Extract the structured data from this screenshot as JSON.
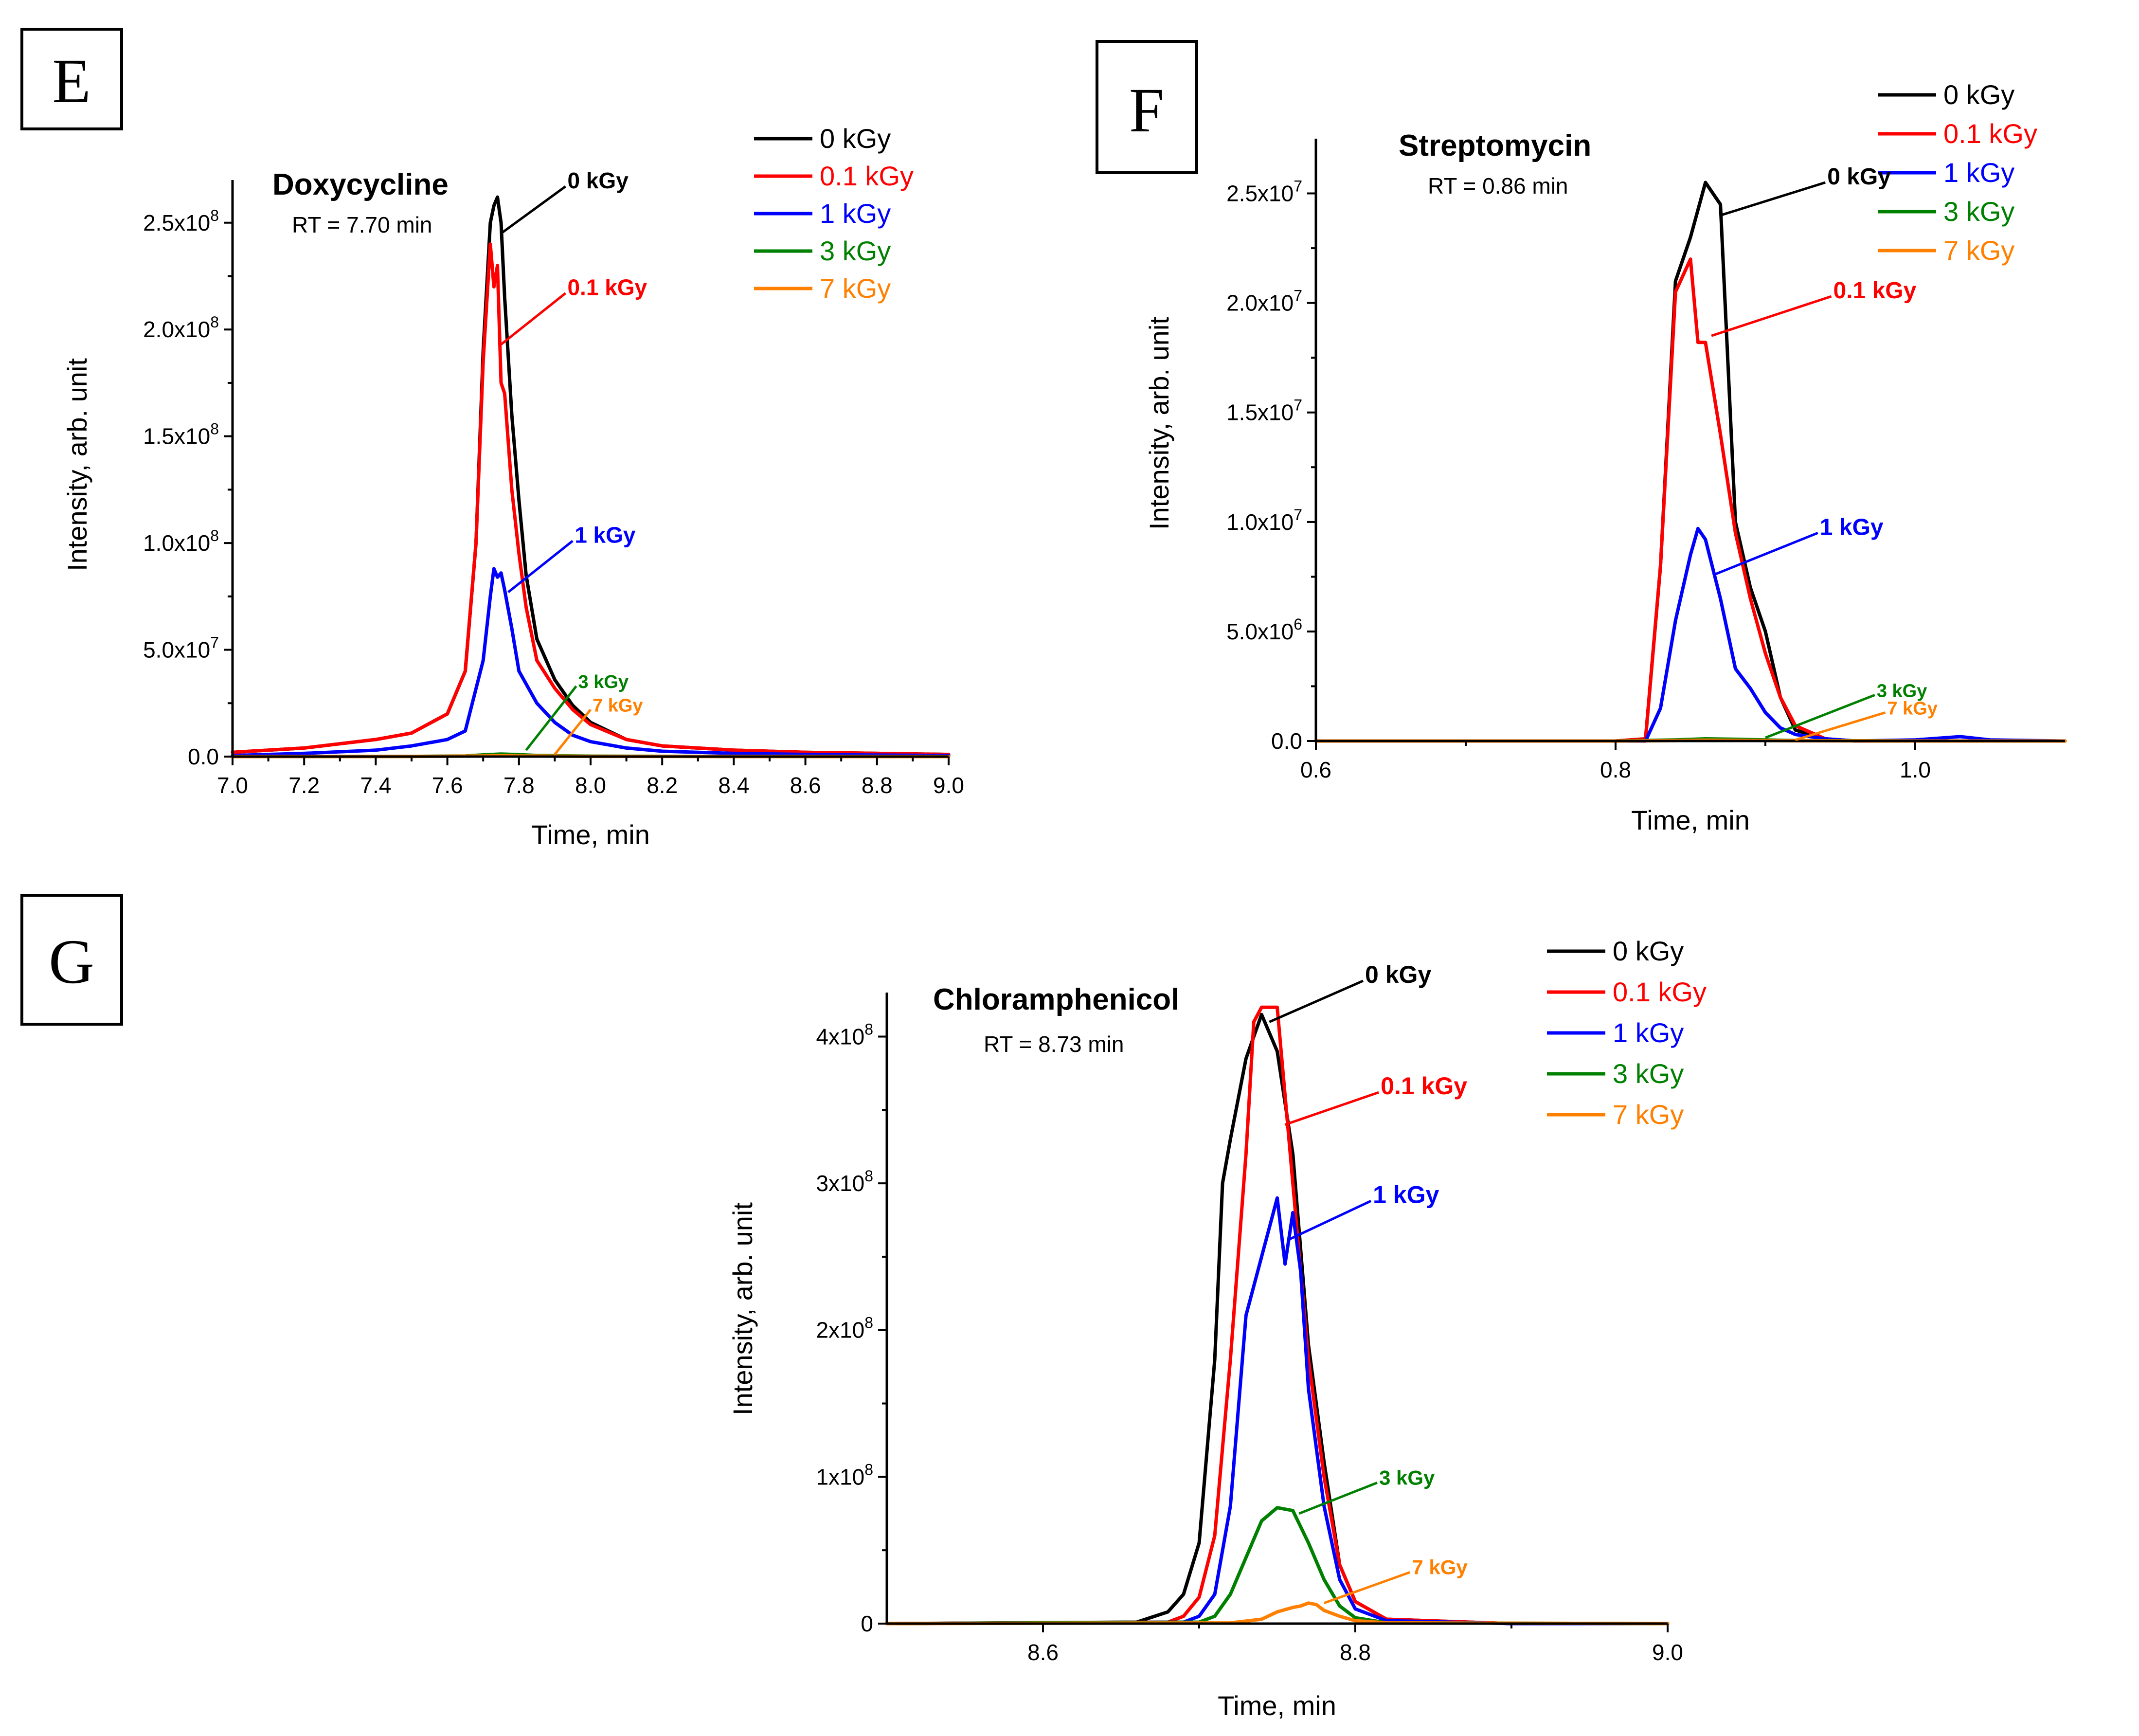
{
  "figure": {
    "panels": [
      "E",
      "F",
      "G"
    ]
  },
  "colors": {
    "0 kGy": "#000000",
    "0.1 kGy": "#ff0000",
    "1 kGy": "#0000ff",
    "3 kGy": "#008000",
    "7 kGy": "#ff8000"
  },
  "chart_data": [
    {
      "panel": "E",
      "type": "line",
      "title": "Doxycycline",
      "subtitle": "RT = 7.70 min",
      "xlabel": "Time, min",
      "ylabel": "Intensity, arb. unit",
      "xlim": [
        7.0,
        9.0
      ],
      "ylim": [
        0,
        270000000
      ],
      "xticks": [
        7.0,
        7.2,
        7.4,
        7.6,
        7.8,
        8.0,
        8.2,
        8.4,
        8.6,
        8.8,
        9.0
      ],
      "xtick_labels": [
        "7.0",
        "7.2",
        "7.4",
        "7.6",
        "7.8",
        "8.0",
        "8.2",
        "8.4",
        "8.6",
        "8.8",
        "9.0"
      ],
      "yticks": [
        0,
        50000000,
        100000000,
        150000000,
        200000000,
        250000000
      ],
      "ytick_labels": [
        {
          "base": "0.0",
          "exp": ""
        },
        {
          "base": "5.0x10",
          "exp": "7"
        },
        {
          "base": "1.0x10",
          "exp": "8"
        },
        {
          "base": "1.5x10",
          "exp": "8"
        },
        {
          "base": "2.0x10",
          "exp": "8"
        },
        {
          "base": "2.5x10",
          "exp": "8"
        }
      ],
      "legend": [
        "0 kGy",
        "0.1 kGy",
        "1 kGy",
        "3 kGy",
        "7 kGy"
      ],
      "legend_position": "top-right, outside plot",
      "series": [
        {
          "name": "0 kGy",
          "x": [
            7.0,
            7.2,
            7.4,
            7.5,
            7.6,
            7.65,
            7.68,
            7.7,
            7.72,
            7.73,
            7.74,
            7.75,
            7.76,
            7.78,
            7.8,
            7.82,
            7.85,
            7.9,
            7.95,
            8.0,
            8.1,
            8.2,
            8.4,
            8.6,
            8.8,
            9.0
          ],
          "y": [
            2000000,
            4000000,
            8000000,
            11000000,
            20000000,
            40000000,
            100000000,
            190000000,
            250000000,
            258000000,
            262000000,
            250000000,
            215000000,
            160000000,
            120000000,
            85000000,
            55000000,
            36000000,
            24000000,
            16000000,
            8000000,
            5000000,
            3000000,
            2000000,
            1500000,
            1000000
          ]
        },
        {
          "name": "0.1 kGy",
          "x": [
            7.0,
            7.2,
            7.4,
            7.5,
            7.6,
            7.65,
            7.68,
            7.7,
            7.72,
            7.73,
            7.74,
            7.75,
            7.76,
            7.78,
            7.8,
            7.82,
            7.85,
            7.9,
            7.95,
            8.0,
            8.1,
            8.2,
            8.4,
            8.6,
            8.8,
            9.0
          ],
          "y": [
            2000000,
            4000000,
            8000000,
            11000000,
            20000000,
            40000000,
            100000000,
            185000000,
            240000000,
            220000000,
            230000000,
            175000000,
            170000000,
            125000000,
            95000000,
            70000000,
            45000000,
            32000000,
            22000000,
            15000000,
            8000000,
            5000000,
            3000000,
            2000000,
            1500000,
            1000000
          ]
        },
        {
          "name": "1 kGy",
          "x": [
            7.0,
            7.2,
            7.4,
            7.5,
            7.6,
            7.65,
            7.7,
            7.72,
            7.73,
            7.74,
            7.75,
            7.76,
            7.78,
            7.8,
            7.85,
            7.9,
            7.95,
            8.0,
            8.1,
            8.2,
            8.4,
            8.6,
            8.8,
            9.0
          ],
          "y": [
            500000,
            1500000,
            3000000,
            5000000,
            8000000,
            12000000,
            45000000,
            75000000,
            88000000,
            84000000,
            86000000,
            78000000,
            60000000,
            40000000,
            25000000,
            16000000,
            10000000,
            7000000,
            4000000,
            2500000,
            1500000,
            1000000,
            700000,
            500000
          ]
        },
        {
          "name": "3 kGy",
          "x": [
            7.0,
            7.5,
            7.65,
            7.7,
            7.75,
            7.8,
            7.85,
            8.0,
            8.5,
            9.0
          ],
          "y": [
            0,
            100000,
            300000,
            800000,
            1200000,
            900000,
            500000,
            200000,
            50000,
            0
          ]
        },
        {
          "name": "7 kGy",
          "x": [
            7.0,
            7.5,
            7.7,
            7.75,
            7.8,
            8.0,
            8.5,
            9.0
          ],
          "y": [
            0,
            50000,
            300000,
            400000,
            300000,
            100000,
            20000,
            0
          ]
        }
      ],
      "annotations": [
        {
          "label": "0 kGy",
          "series": "0 kGy",
          "at": [
            7.75,
            245000000
          ],
          "text_at": [
            7.93,
            267000000
          ]
        },
        {
          "label": "0.1 kGy",
          "series": "0.1 kGy",
          "at": [
            7.75,
            193000000
          ],
          "text_at": [
            7.93,
            217000000
          ]
        },
        {
          "label": "1 kGy",
          "series": "1 kGy",
          "at": [
            7.77,
            77000000
          ],
          "text_at": [
            7.95,
            101000000
          ]
        },
        {
          "label": "3 kGy",
          "series": "3 kGy",
          "at": [
            7.82,
            3000000
          ],
          "text_at": [
            7.96,
            33000000
          ]
        },
        {
          "label": "7 kGy",
          "series": "7 kGy",
          "at": [
            7.9,
            1000000
          ],
          "text_at": [
            8.0,
            22000000
          ]
        }
      ]
    },
    {
      "panel": "F",
      "type": "line",
      "title": "Streptomycin",
      "subtitle": "RT = 0.86 min",
      "xlabel": "Time, min",
      "ylabel": "Intensity, arb. unit",
      "xlim": [
        0.6,
        1.1
      ],
      "ylim": [
        0,
        27500000
      ],
      "xticks": [
        0.6,
        0.8,
        1.0
      ],
      "xtick_labels": [
        "0.6",
        "0.8",
        "1.0"
      ],
      "yticks": [
        0,
        5000000,
        10000000,
        15000000,
        20000000,
        25000000
      ],
      "ytick_labels": [
        {
          "base": "0.0",
          "exp": ""
        },
        {
          "base": "5.0x10",
          "exp": "6"
        },
        {
          "base": "1.0x10",
          "exp": "7"
        },
        {
          "base": "1.5x10",
          "exp": "7"
        },
        {
          "base": "2.0x10",
          "exp": "7"
        },
        {
          "base": "2.5x10",
          "exp": "7"
        }
      ],
      "legend": [
        "0 kGy",
        "0.1 kGy",
        "1 kGy",
        "3 kGy",
        "7 kGy"
      ],
      "legend_position": "top-right, outside plot",
      "series": [
        {
          "name": "0 kGy",
          "x": [
            0.6,
            0.8,
            0.82,
            0.83,
            0.84,
            0.85,
            0.86,
            0.87,
            0.88,
            0.89,
            0.9,
            0.91,
            0.92,
            0.94,
            0.96,
            1.0,
            1.1
          ],
          "y": [
            0,
            0,
            100000,
            8000000,
            21000000,
            23000000,
            25500000,
            24500000,
            10000000,
            7000000,
            5000000,
            2000000,
            500000,
            100000,
            0,
            0,
            0
          ]
        },
        {
          "name": "0.1 kGy",
          "x": [
            0.6,
            0.8,
            0.82,
            0.83,
            0.84,
            0.85,
            0.855,
            0.86,
            0.87,
            0.88,
            0.89,
            0.9,
            0.91,
            0.92,
            0.94,
            0.96,
            1.0,
            1.1
          ],
          "y": [
            0,
            0,
            100000,
            8000000,
            20500000,
            22000000,
            18200000,
            18200000,
            14000000,
            9500000,
            6500000,
            4000000,
            2000000,
            700000,
            100000,
            0,
            0,
            0
          ]
        },
        {
          "name": "1 kGy",
          "x": [
            0.6,
            0.8,
            0.82,
            0.83,
            0.84,
            0.85,
            0.855,
            0.86,
            0.87,
            0.88,
            0.89,
            0.9,
            0.91,
            0.92,
            0.94,
            0.96,
            1.0,
            1.03,
            1.05,
            1.1
          ],
          "y": [
            0,
            0,
            0,
            1500000,
            5500000,
            8500000,
            9700000,
            9200000,
            6500000,
            3300000,
            2400000,
            1300000,
            600000,
            300000,
            100000,
            0,
            50000,
            200000,
            50000,
            0
          ]
        },
        {
          "name": "3 kGy",
          "x": [
            0.6,
            0.8,
            0.84,
            0.86,
            0.88,
            0.92,
            1.0,
            1.1
          ],
          "y": [
            0,
            0,
            50000,
            100000,
            80000,
            20000,
            0,
            0
          ]
        },
        {
          "name": "7 kGy",
          "x": [
            0.6,
            0.8,
            0.84,
            0.86,
            0.88,
            0.92,
            1.0,
            1.1
          ],
          "y": [
            0,
            0,
            20000,
            40000,
            30000,
            10000,
            0,
            0
          ]
        }
      ],
      "annotations": [
        {
          "label": "0 kGy",
          "series": "0 kGy",
          "at": [
            0.87,
            24000000
          ],
          "text_at": [
            0.94,
            25500000
          ]
        },
        {
          "label": "0.1 kGy",
          "series": "0.1 kGy",
          "at": [
            0.864,
            18500000
          ],
          "text_at": [
            0.944,
            20300000
          ]
        },
        {
          "label": "1 kGy",
          "series": "1 kGy",
          "at": [
            0.866,
            7600000
          ],
          "text_at": [
            0.935,
            9500000
          ]
        },
        {
          "label": "3 kGy",
          "series": "3 kGy",
          "at": [
            0.9,
            150000
          ],
          "text_at": [
            0.973,
            2100000
          ]
        },
        {
          "label": "7 kGy",
          "series": "7 kGy",
          "at": [
            0.92,
            50000
          ],
          "text_at": [
            0.98,
            1300000
          ]
        }
      ]
    },
    {
      "panel": "G",
      "type": "line",
      "title": "Chloramphenicol",
      "subtitle": "RT = 8.73 min",
      "xlabel": "Time, min",
      "ylabel": "Intensity, arb. unit",
      "xlim": [
        8.5,
        9.0
      ],
      "ylim": [
        0,
        430000000
      ],
      "xticks": [
        8.6,
        8.8,
        9.0
      ],
      "xtick_labels": [
        "8.6",
        "8.8",
        "9.0"
      ],
      "yticks": [
        0,
        100000000,
        200000000,
        300000000,
        400000000
      ],
      "ytick_labels": [
        {
          "base": "0",
          "exp": ""
        },
        {
          "base": "1x10",
          "exp": "8"
        },
        {
          "base": "2x10",
          "exp": "8"
        },
        {
          "base": "3x10",
          "exp": "8"
        },
        {
          "base": "4x10",
          "exp": "8"
        }
      ],
      "legend": [
        "0 kGy",
        "0.1 kGy",
        "1 kGy",
        "3 kGy",
        "7 kGy"
      ],
      "legend_position": "top-right, outside plot",
      "series": [
        {
          "name": "0 kGy",
          "x": [
            8.5,
            8.66,
            8.68,
            8.69,
            8.7,
            8.71,
            8.715,
            8.72,
            8.73,
            8.74,
            8.75,
            8.76,
            8.77,
            8.78,
            8.79,
            8.8,
            8.82,
            8.9,
            9.0
          ],
          "y": [
            0,
            1000000,
            8000000,
            20000000,
            55000000,
            180000000,
            300000000,
            330000000,
            385000000,
            415000000,
            390000000,
            320000000,
            190000000,
            110000000,
            40000000,
            15000000,
            3000000,
            0,
            0
          ]
        },
        {
          "name": "0.1 kGy",
          "x": [
            8.5,
            8.68,
            8.69,
            8.7,
            8.71,
            8.72,
            8.73,
            8.735,
            8.74,
            8.75,
            8.755,
            8.76,
            8.77,
            8.78,
            8.79,
            8.8,
            8.82,
            8.9,
            9.0
          ],
          "y": [
            0,
            1000000,
            5000000,
            18000000,
            60000000,
            180000000,
            320000000,
            410000000,
            420000000,
            420000000,
            360000000,
            300000000,
            180000000,
            100000000,
            40000000,
            15000000,
            3000000,
            0,
            0
          ]
        },
        {
          "name": "1 kGy",
          "x": [
            8.5,
            8.69,
            8.7,
            8.71,
            8.72,
            8.73,
            8.74,
            8.75,
            8.755,
            8.76,
            8.765,
            8.77,
            8.78,
            8.79,
            8.8,
            8.82,
            8.9,
            9.0
          ],
          "y": [
            0,
            1000000,
            5000000,
            20000000,
            80000000,
            210000000,
            250000000,
            290000000,
            245000000,
            280000000,
            240000000,
            160000000,
            80000000,
            30000000,
            10000000,
            2000000,
            0,
            0
          ]
        },
        {
          "name": "3 kGy",
          "x": [
            8.5,
            8.7,
            8.71,
            8.72,
            8.73,
            8.74,
            8.75,
            8.76,
            8.77,
            8.78,
            8.79,
            8.8,
            8.82,
            9.0
          ],
          "y": [
            0,
            1000000,
            5000000,
            20000000,
            45000000,
            70000000,
            79000000,
            77000000,
            55000000,
            30000000,
            12000000,
            4000000,
            500000,
            0
          ]
        },
        {
          "name": "7 kGy",
          "x": [
            8.5,
            8.72,
            8.74,
            8.75,
            8.76,
            8.765,
            8.77,
            8.775,
            8.78,
            8.79,
            8.8,
            8.82,
            9.0
          ],
          "y": [
            0,
            500000,
            3000000,
            8000000,
            11000000,
            12000000,
            14000000,
            13000000,
            9000000,
            5000000,
            2000000,
            500000,
            0
          ]
        }
      ],
      "annotations": [
        {
          "label": "0 kGy",
          "series": "0 kGy",
          "at": [
            8.745,
            410000000
          ],
          "text_at": [
            8.805,
            438000000
          ]
        },
        {
          "label": "0.1 kGy",
          "series": "0.1 kGy",
          "at": [
            8.755,
            340000000
          ],
          "text_at": [
            8.815,
            362000000
          ]
        },
        {
          "label": "1 kGy",
          "series": "1 kGy",
          "at": [
            8.758,
            262000000
          ],
          "text_at": [
            8.81,
            288000000
          ]
        },
        {
          "label": "3 kGy",
          "series": "3 kGy",
          "at": [
            8.764,
            75000000
          ],
          "text_at": [
            8.814,
            96000000
          ]
        },
        {
          "label": "7 kGy",
          "series": "7 kGy",
          "at": [
            8.78,
            14000000
          ],
          "text_at": [
            8.835,
            35000000
          ]
        }
      ]
    }
  ]
}
